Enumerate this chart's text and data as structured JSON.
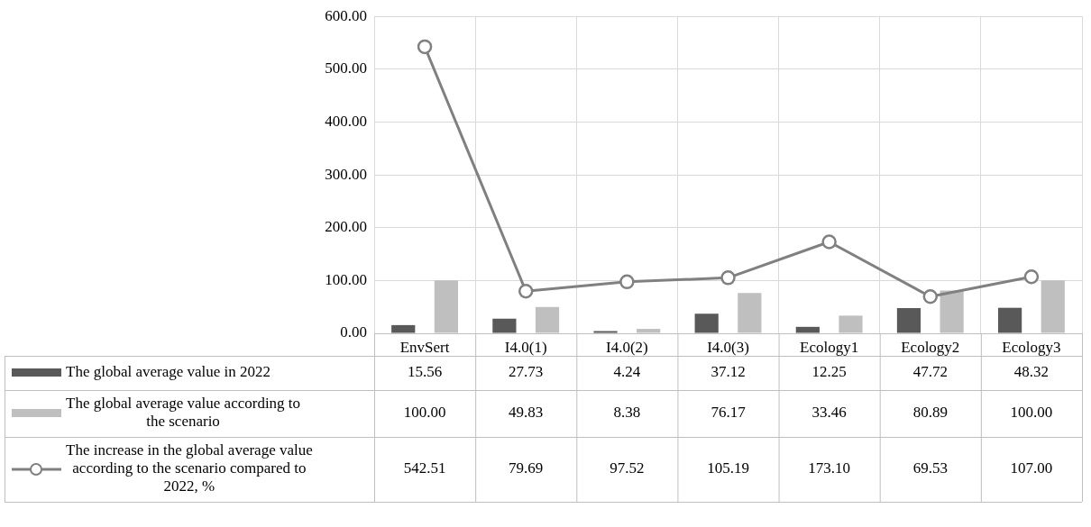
{
  "chart_data": {
    "type": "bar",
    "categories": [
      "EnvSert",
      "I4.0(1)",
      "I4.0(2)",
      "I4.0(3)",
      "Ecology1",
      "Ecology2",
      "Ecology3"
    ],
    "series": [
      {
        "name": "The global average value in 2022",
        "color": "#595959",
        "values": [
          15.56,
          27.73,
          4.24,
          37.12,
          12.25,
          47.72,
          48.32
        ],
        "value_labels": [
          "15.56",
          "27.73",
          "4.24",
          "37.12",
          "12.25",
          "47.72",
          "48.32"
        ]
      },
      {
        "name": "The global average value according to the scenario",
        "color": "#bfbfbf",
        "values": [
          100.0,
          49.83,
          8.38,
          76.17,
          33.46,
          80.89,
          100.0
        ],
        "value_labels": [
          "100.00",
          "49.83",
          "8.38",
          "76.17",
          "33.46",
          "80.89",
          "100.00"
        ]
      },
      {
        "name": "The increase in the global average value according to the scenario compared to 2022, %",
        "type": "line",
        "color": "#808080",
        "values": [
          542.51,
          79.69,
          97.52,
          105.19,
          173.1,
          69.53,
          107.0
        ],
        "value_labels": [
          "542.51",
          "79.69",
          "97.52",
          "105.19",
          "173.10",
          "69.53",
          "107.00"
        ]
      }
    ],
    "ylim": [
      0,
      600
    ],
    "yticks": [
      {
        "value": 0,
        "label": "0.00"
      },
      {
        "value": 100,
        "label": "100.00"
      },
      {
        "value": 200,
        "label": "200.00"
      },
      {
        "value": 300,
        "label": "300.00"
      },
      {
        "value": 400,
        "label": "400.00"
      },
      {
        "value": 500,
        "label": "500.00"
      },
      {
        "value": 600,
        "label": "600.00"
      }
    ],
    "grid": true,
    "legend": "bottom",
    "marker": "circle",
    "line_style": "solid"
  }
}
